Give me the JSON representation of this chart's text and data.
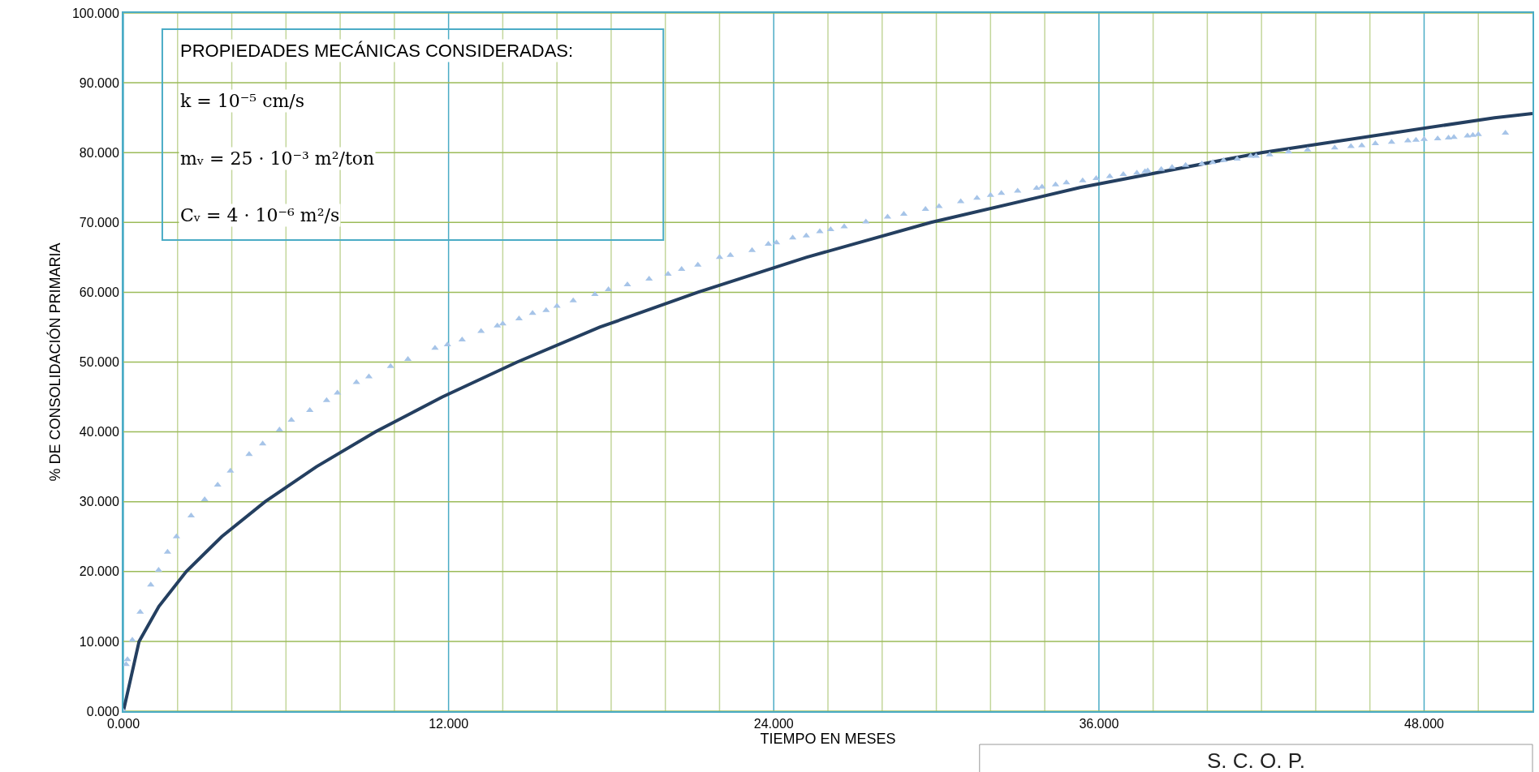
{
  "chart_data": {
    "type": "line",
    "xlabel": "TIEMPO EN MESES",
    "ylabel": "% DE CONSOLIDACIÓN PRIMARIA",
    "annotations": [
      "PROPIEDADES MECÁNICAS CONSIDERADAS:",
      "k = 10⁻⁵ cm/s",
      "mᵥ = 25 · 10⁻³ m²/ton",
      "Cᵥ = 4 · 10⁻⁶ m²/s",
      "S. C. O. P."
    ],
    "series": [
      {
        "type": "scatter",
        "marker": "triangle",
        "color": "#a6c4e8",
        "x": [
          0,
          0.1,
          0.15,
          0.33,
          0.62,
          1.01,
          1.3,
          1.63,
          1.96,
          2.5,
          3.0,
          3.48,
          3.95,
          4.64,
          5.14,
          5.76,
          6.2,
          6.88,
          7.5,
          7.9,
          8.6,
          9.06,
          9.86,
          10.5,
          11.5,
          11.96,
          12.5,
          13.2,
          13.8,
          14.0,
          14.6,
          15.1,
          15.6,
          16.0,
          16.6,
          17.4,
          17.9,
          18.6,
          19.4,
          20.1,
          20.6,
          21.2,
          22.0,
          22.4,
          23.2,
          23.8,
          24.1,
          24.7,
          25.2,
          25.7,
          26.1,
          26.6,
          27.4,
          28.2,
          28.8,
          29.6,
          30.1,
          30.9,
          31.5,
          32.0,
          32.4,
          33.0,
          33.7,
          33.9,
          34.4,
          34.8,
          35.4,
          35.9,
          36.4,
          36.9,
          37.4,
          37.7,
          37.8,
          38.3,
          38.7,
          39.2,
          39.8,
          40.2,
          40.6,
          41.1,
          41.6,
          41.8,
          42.3,
          43.0,
          43.7,
          44.7,
          45.3,
          45.7,
          46.2,
          46.8,
          47.4,
          47.7,
          48.0,
          48.5,
          48.9,
          49.1,
          49.6,
          49.8,
          50.0,
          51.0
        ],
        "values": [
          0,
          6.7,
          7.4,
          10.2,
          14.2,
          18.1,
          20.2,
          22.8,
          25.0,
          28.0,
          30.3,
          32.4,
          34.4,
          36.8,
          38.3,
          40.3,
          41.7,
          43.1,
          44.5,
          45.6,
          47.1,
          47.9,
          49.4,
          50.4,
          52.0,
          52.5,
          53.2,
          54.4,
          55.2,
          55.5,
          56.2,
          57.0,
          57.4,
          58.0,
          58.8,
          59.7,
          60.4,
          61.1,
          61.9,
          62.6,
          63.3,
          63.9,
          65.0,
          65.3,
          66.0,
          66.9,
          67.1,
          67.8,
          68.1,
          68.7,
          69.0,
          69.4,
          70.1,
          70.8,
          71.2,
          71.9,
          72.3,
          73.0,
          73.5,
          73.9,
          74.2,
          74.5,
          74.9,
          75.1,
          75.4,
          75.7,
          76.0,
          76.3,
          76.6,
          76.9,
          77.1,
          77.3,
          77.4,
          77.6,
          77.9,
          78.2,
          78.4,
          78.6,
          78.9,
          79.1,
          79.5,
          79.5,
          79.7,
          80.1,
          80.4,
          80.7,
          80.9,
          81.0,
          81.3,
          81.5,
          81.7,
          81.8,
          81.9,
          82.0,
          82.1,
          82.2,
          82.4,
          82.5,
          82.6,
          82.8
        ]
      },
      {
        "line_style": "solid",
        "color": "#243f60",
        "x": [
          0,
          0.58,
          1.31,
          2.32,
          3.63,
          5.23,
          7.12,
          9.3,
          11.77,
          14.53,
          17.58,
          21.2,
          25.2,
          29.8,
          35.3,
          42.0,
          50.6,
          52
        ],
        "values": [
          0,
          10,
          15,
          20,
          25,
          30,
          35,
          40,
          45,
          50,
          55,
          60,
          65,
          70,
          75,
          80,
          85,
          85.6
        ]
      }
    ],
    "xlim": [
      0,
      52
    ],
    "xticks": [
      {
        "value": 0,
        "label": "0.000"
      },
      {
        "value": 2,
        "label": null
      },
      {
        "value": 4,
        "label": null
      },
      {
        "value": 6,
        "label": null
      },
      {
        "value": 8,
        "label": null
      },
      {
        "value": 10,
        "label": null
      },
      {
        "value": 12,
        "label": "12.000"
      },
      {
        "value": 14,
        "label": null
      },
      {
        "value": 16,
        "label": null
      },
      {
        "value": 18,
        "label": null
      },
      {
        "value": 20,
        "label": null
      },
      {
        "value": 22,
        "label": null
      },
      {
        "value": 24,
        "label": "24.000"
      },
      {
        "value": 26,
        "label": null
      },
      {
        "value": 28,
        "label": null
      },
      {
        "value": 30,
        "label": null
      },
      {
        "value": 32,
        "label": null
      },
      {
        "value": 34,
        "label": null
      },
      {
        "value": 36,
        "label": "36.000"
      },
      {
        "value": 38,
        "label": null
      },
      {
        "value": 40,
        "label": null
      },
      {
        "value": 42,
        "label": null
      },
      {
        "value": 44,
        "label": null
      },
      {
        "value": 46,
        "label": null
      },
      {
        "value": 48,
        "label": "48.000"
      },
      {
        "value": 50,
        "label": null
      }
    ],
    "ylim": [
      0,
      100
    ],
    "yticks": [
      {
        "value": 0,
        "label": "0.000"
      },
      {
        "value": 10,
        "label": "10.000"
      },
      {
        "value": 20,
        "label": "20.000"
      },
      {
        "value": 30,
        "label": "30.000"
      },
      {
        "value": 40,
        "label": "40.000"
      },
      {
        "value": 50,
        "label": "50.000"
      },
      {
        "value": 60,
        "label": "60.000"
      },
      {
        "value": 70,
        "label": "70.000"
      },
      {
        "value": 80,
        "label": "80.000"
      },
      {
        "value": 90,
        "label": "90.000"
      },
      {
        "value": 100,
        "label": "100.000"
      }
    ],
    "grid": true
  }
}
